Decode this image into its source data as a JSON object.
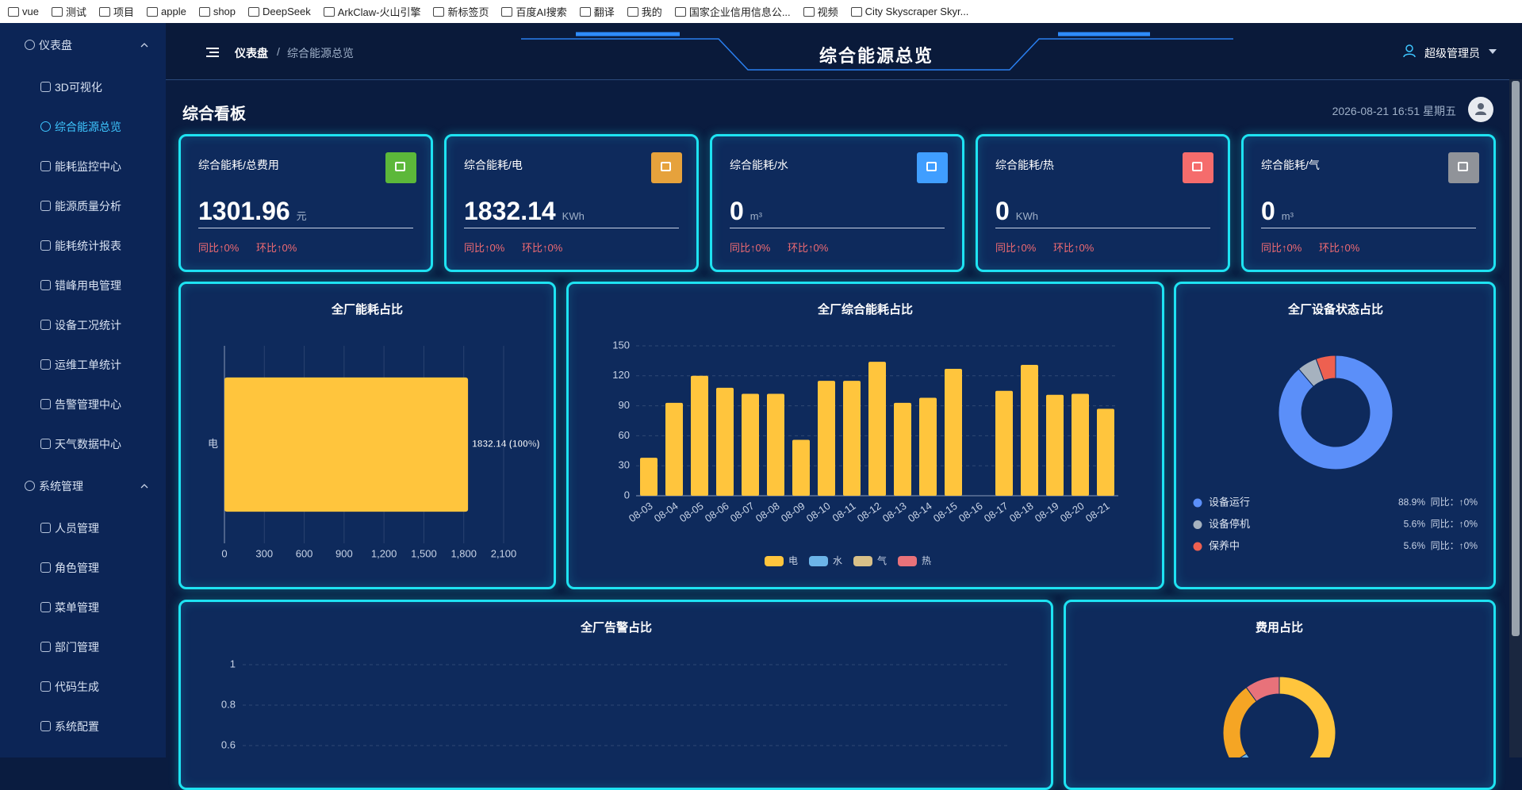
{
  "browser": {
    "bookmarks": [
      "vue",
      "测试",
      "项目",
      "apple",
      "shop",
      "DeepSeek",
      "ArkClaw-火山引擎",
      "新标签页",
      "百度AI搜索",
      "翻译",
      "我的",
      "国家企业信用信息公...",
      "视频",
      "City Skyscraper Skyr..."
    ]
  },
  "sidebar": {
    "groups": [
      {
        "title": "仪表盘",
        "items": [
          {
            "label": "3D可视化"
          },
          {
            "label": "综合能源总览",
            "active": true
          },
          {
            "label": "能耗监控中心"
          },
          {
            "label": "能源质量分析"
          },
          {
            "label": "能耗统计报表"
          },
          {
            "label": "错峰用电管理"
          },
          {
            "label": "设备工况统计"
          },
          {
            "label": "运维工单统计"
          },
          {
            "label": "告警管理中心"
          },
          {
            "label": "天气数据中心"
          }
        ]
      },
      {
        "title": "系统管理",
        "items": [
          {
            "label": "人员管理"
          },
          {
            "label": "角色管理"
          },
          {
            "label": "菜单管理"
          },
          {
            "label": "部门管理"
          },
          {
            "label": "代码生成"
          },
          {
            "label": "系统配置"
          }
        ]
      }
    ]
  },
  "header": {
    "breadcrumb": [
      "仪表盘",
      "综合能源总览"
    ],
    "separator": "/",
    "title": "综合能源总览",
    "user": "超级管理员"
  },
  "board": {
    "title": "综合看板",
    "datetime": "2026-08-21 16:51 星期五"
  },
  "cards": [
    {
      "title": "综合能耗/总费用",
      "value": 1301.96,
      "unit": "元",
      "yoy": "同比↑0%",
      "mom": "环比↑0%",
      "color": "#5cb83a"
    },
    {
      "title": "综合能耗/电",
      "value": 1832.14,
      "unit": "KWh",
      "yoy": "同比↑0%",
      "mom": "环比↑0%",
      "color": "#e6a23c"
    },
    {
      "title": "综合能耗/水",
      "value": 0,
      "unit": "m³",
      "yoy": "同比↑0%",
      "mom": "环比↑0%",
      "color": "#409eff"
    },
    {
      "title": "综合能耗/热",
      "value": 0,
      "unit": "KWh",
      "yoy": "同比↑0%",
      "mom": "环比↑0%",
      "color": "#f56c6c"
    },
    {
      "title": "综合能耗/气",
      "value": 0,
      "unit": "m³",
      "yoy": "同比↑0%",
      "mom": "环比↑0%",
      "color": "#909399"
    }
  ],
  "chart_data": [
    {
      "type": "bar",
      "orientation": "horizontal",
      "title": "全厂能耗占比",
      "categories": [
        "电"
      ],
      "values": [
        1832.14
      ],
      "value_labels": [
        "1832.14 (100%)"
      ],
      "color": "#ffc53d",
      "xlim": [
        0,
        2100
      ],
      "xticks": [
        0,
        300,
        600,
        900,
        {
          "value": 1200,
          "label": "1,200"
        },
        {
          "value": 1500,
          "label": "1,500"
        },
        {
          "value": 1800,
          "label": "1,800"
        },
        {
          "value": 2100,
          "label": "2,100"
        }
      ],
      "grid": true
    },
    {
      "type": "bar",
      "stacked": true,
      "title": "全厂综合能耗占比",
      "categories": [
        "08-03",
        "08-04",
        "08-05",
        "08-06",
        "08-07",
        "08-08",
        "08-09",
        "08-10",
        "08-11",
        "08-12",
        "08-13",
        "08-14",
        "08-15",
        "08-16",
        "08-17",
        "08-18",
        "08-19",
        "08-20",
        "08-21"
      ],
      "series": [
        {
          "name": "电",
          "color": "#ffc53d",
          "values": [
            38,
            93,
            120,
            108,
            102,
            102,
            56,
            115,
            115,
            134,
            93,
            98,
            127,
            0,
            105,
            131,
            101,
            102,
            87
          ]
        },
        {
          "name": "水",
          "color": "#6cb4e8",
          "values": [
            0,
            0,
            0,
            0,
            0,
            0,
            0,
            0,
            0,
            0,
            0,
            0,
            0,
            0,
            0,
            0,
            0,
            0,
            0
          ]
        },
        {
          "name": "气",
          "color": "#d8c088",
          "values": [
            0,
            0,
            0,
            0,
            0,
            0,
            0,
            0,
            0,
            0,
            0,
            0,
            0,
            0,
            0,
            0,
            0,
            0,
            0
          ]
        },
        {
          "name": "热",
          "color": "#e8727a",
          "values": [
            0,
            0,
            0,
            0,
            0,
            0,
            0,
            0,
            0,
            0,
            0,
            0,
            0,
            0,
            0,
            0,
            0,
            0,
            0
          ]
        }
      ],
      "ylim": [
        0,
        150
      ],
      "yticks": [
        0,
        30,
        60,
        90,
        120,
        150
      ],
      "grid": true,
      "legend": "bottom"
    },
    {
      "type": "pie",
      "donut": true,
      "title": "全厂设备状态占比",
      "categories": [
        "设备运行",
        "设备停机",
        "保养中"
      ],
      "values": [
        88.9,
        5.6,
        5.6
      ],
      "value_labels": [
        "88.9%",
        "5.6%",
        "5.6%"
      ],
      "yoy_labels": [
        "同比：↑0%",
        "同比：↑0%",
        "同比：↑0%"
      ],
      "colors": [
        "#5b8ff9",
        "#a6b2bf",
        "#ee6050"
      ]
    },
    {
      "type": "line",
      "title": "全厂告警占比",
      "ylim": [
        0,
        1
      ],
      "yticks": [
        0.6,
        0.8,
        1
      ],
      "grid": true
    },
    {
      "type": "pie",
      "donut": true,
      "title": "费用占比",
      "values": [
        62,
        4,
        24,
        10
      ],
      "colors": [
        "#ffc53d",
        "#6cb4e8",
        "#f5a524",
        "#e8727a"
      ]
    }
  ]
}
